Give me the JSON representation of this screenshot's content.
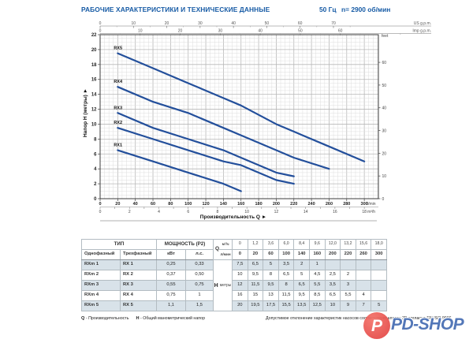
{
  "header": {
    "title": "РАБОЧИЕ ХАРАКТЕРИСТИКИ И ТЕХНИЧЕСКИЕ ДАННЫЕ",
    "frequency": "50 Гц",
    "speed": "n= 2900 об/мин"
  },
  "chart_data": {
    "type": "line",
    "xlabel": "Производительность Q  ►",
    "ylabel": "Напор H (метры)  ►",
    "x_unit_primary": "l/min",
    "x_unit_secondary": "m³/h",
    "top_axis_us": {
      "label": "US g.p.m.",
      "ticks": [
        0,
        10,
        20,
        30,
        40,
        50,
        60,
        70
      ],
      "lmin_per_unit": 3.785
    },
    "top_axis_imp": {
      "label": "Imp g.p.m.",
      "ticks": [
        0,
        10,
        20,
        30,
        40,
        50,
        60
      ],
      "lmin_per_unit": 4.546
    },
    "x_ticks_lmin": [
      0,
      20,
      40,
      60,
      80,
      100,
      120,
      140,
      160,
      180,
      200,
      220,
      240,
      260,
      280,
      300
    ],
    "x_ticks_m3h": [
      0,
      2,
      4,
      6,
      8,
      10,
      12,
      14,
      16,
      18
    ],
    "y_ticks_m": [
      0,
      2,
      4,
      6,
      8,
      10,
      12,
      14,
      16,
      18,
      20,
      22
    ],
    "right_axis_feet": {
      "label": "feet",
      "ticks": [
        0,
        10,
        20,
        30,
        40,
        50,
        60
      ],
      "m_per_unit": 0.3048
    },
    "xlim_lmin": [
      0,
      316
    ],
    "ylim_m": [
      0,
      22
    ],
    "grid": true,
    "curve_color": "#234f9b",
    "series": [
      {
        "name": "RX1",
        "x_lmin": [
          20,
          60,
          100,
          140,
          160
        ],
        "h_m": [
          6.5,
          5,
          3.5,
          2,
          1
        ]
      },
      {
        "name": "RX2",
        "x_lmin": [
          20,
          60,
          100,
          140,
          160,
          200,
          220
        ],
        "h_m": [
          9.5,
          8,
          6.5,
          5,
          4.5,
          2.5,
          2
        ]
      },
      {
        "name": "RX3",
        "x_lmin": [
          20,
          60,
          100,
          140,
          160,
          200,
          220
        ],
        "h_m": [
          11.5,
          9.5,
          8,
          6.5,
          5.5,
          3.5,
          3
        ]
      },
      {
        "name": "RX4",
        "x_lmin": [
          20,
          60,
          100,
          140,
          160,
          200,
          220,
          260
        ],
        "h_m": [
          15,
          13,
          11.5,
          9.5,
          8.5,
          6.5,
          5.5,
          4
        ]
      },
      {
        "name": "RX5",
        "x_lmin": [
          20,
          60,
          100,
          140,
          160,
          200,
          220,
          260,
          300
        ],
        "h_m": [
          19.5,
          17.5,
          15.5,
          13.5,
          12.5,
          10,
          9,
          7,
          5
        ]
      }
    ]
  },
  "table": {
    "type_header": "ТИП",
    "power_header": "МОЩНОСТЬ (P2)",
    "col_single": "Однофазный",
    "col_three": "Трехфазный",
    "col_kw": "кВт",
    "col_hp": "л.с.",
    "q_label": "Q",
    "q_unit_m3h": "м³/ч",
    "q_unit_lmin": "л/мин",
    "h_label": "H",
    "h_unit": "метры",
    "q_m3h": [
      "0",
      "1,2",
      "3,6",
      "6,0",
      "8,4",
      "9,6",
      "12,0",
      "13,2",
      "15,6",
      "18,0"
    ],
    "q_lmin": [
      "0",
      "20",
      "60",
      "100",
      "140",
      "160",
      "200",
      "220",
      "260",
      "300"
    ],
    "rows": [
      {
        "single": "RXm 1",
        "three": "RX 1",
        "kw": "0,25",
        "hp": "0,33",
        "h": [
          "7,5",
          "6,5",
          "5",
          "3,5",
          "2",
          "1",
          "",
          "",
          "",
          ""
        ]
      },
      {
        "single": "RXm 2",
        "three": "RX 2",
        "kw": "0,37",
        "hp": "0,50",
        "h": [
          "10",
          "9,5",
          "8",
          "6,5",
          "5",
          "4,5",
          "2,5",
          "2",
          "",
          ""
        ]
      },
      {
        "single": "RXm 3",
        "three": "RX 3",
        "kw": "0,55",
        "hp": "0,75",
        "h": [
          "12",
          "11,5",
          "9,5",
          "8",
          "6,5",
          "5,5",
          "3,5",
          "3",
          "",
          ""
        ]
      },
      {
        "single": "RXm 4",
        "three": "RX 4",
        "kw": "0,75",
        "hp": "1",
        "h": [
          "16",
          "15",
          "13",
          "11,5",
          "9,5",
          "8,5",
          "6,5",
          "5,5",
          "4",
          ""
        ]
      },
      {
        "single": "RXm 5",
        "three": "RX 5",
        "kw": "1,1",
        "hp": "1,5",
        "h": [
          "20",
          "19,5",
          "17,5",
          "15,5",
          "13,5",
          "12,5",
          "10",
          "9",
          "7",
          "5"
        ]
      }
    ]
  },
  "footnotes": {
    "q_term": "Q",
    "q_desc": " - Производительность",
    "h_term": "H",
    "h_desc": " - Общий манометрический напор",
    "tolerance": "Допустимое отклонение характеристик насосов соответствует классу 3B согласно EN ISO 9906"
  },
  "logo": {
    "text": "PD-SHOP",
    "monogram": "P",
    "circle_color": "#e9504e",
    "text_color": "#5377b8"
  }
}
